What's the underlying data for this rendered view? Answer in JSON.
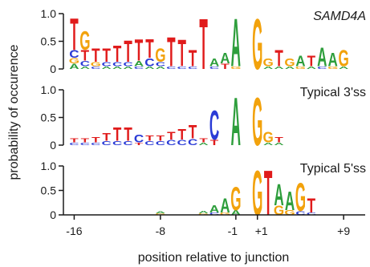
{
  "chart_data": {
    "type": "sequence-logo",
    "xlabel": "position relative to junction",
    "ylabel": "probability of occurence",
    "x_ticks": [
      "-16",
      "-8",
      "-1",
      "+1",
      "+9"
    ],
    "x_tick_positions": [
      -16,
      -8,
      -1,
      1,
      9
    ],
    "y_ticks": [
      "0",
      "0.5",
      "1.0"
    ],
    "ylim": [
      0,
      1.0
    ],
    "x_range": [
      -17,
      11
    ],
    "colors": {
      "A": "#2e9e3c",
      "C": "#2a3bd6",
      "G": "#f2a20c",
      "T": "#e01b1b"
    },
    "panels": [
      {
        "title": "SAMD4A",
        "title_style": "italic",
        "positions": [
          {
            "pos": -16,
            "letters": [
              {
                "b": "T",
                "p": 0.6
              },
              {
                "b": "C",
                "p": 0.15
              },
              {
                "b": "A",
                "p": 0.1
              },
              {
                "b": "G",
                "p": 0.1
              }
            ]
          },
          {
            "pos": -15,
            "letters": [
              {
                "b": "G",
                "p": 0.35
              },
              {
                "b": "T",
                "p": 0.2
              },
              {
                "b": "C",
                "p": 0.1
              },
              {
                "b": "A",
                "p": 0.05
              }
            ]
          },
          {
            "pos": -14,
            "letters": [
              {
                "b": "T",
                "p": 0.25
              },
              {
                "b": "G",
                "p": 0.08
              },
              {
                "b": "C",
                "p": 0.05
              }
            ]
          },
          {
            "pos": -13,
            "letters": [
              {
                "b": "T",
                "p": 0.25
              },
              {
                "b": "C",
                "p": 0.08
              },
              {
                "b": "A",
                "p": 0.05
              }
            ]
          },
          {
            "pos": -12,
            "letters": [
              {
                "b": "T",
                "p": 0.3
              },
              {
                "b": "C",
                "p": 0.08
              },
              {
                "b": "A",
                "p": 0.05
              }
            ]
          },
          {
            "pos": -11,
            "letters": [
              {
                "b": "T",
                "p": 0.4
              },
              {
                "b": "C",
                "p": 0.08
              },
              {
                "b": "A",
                "p": 0.05
              }
            ]
          },
          {
            "pos": -10,
            "letters": [
              {
                "b": "T",
                "p": 0.4
              },
              {
                "b": "A",
                "p": 0.1
              },
              {
                "b": "C",
                "p": 0.05
              }
            ]
          },
          {
            "pos": -9,
            "letters": [
              {
                "b": "T",
                "p": 0.35
              },
              {
                "b": "C",
                "p": 0.15
              },
              {
                "b": "A",
                "p": 0.05
              }
            ]
          },
          {
            "pos": -8,
            "letters": [
              {
                "b": "G",
                "p": 0.25
              },
              {
                "b": "C",
                "p": 0.08
              },
              {
                "b": "A",
                "p": 0.05
              }
            ]
          },
          {
            "pos": -7,
            "letters": [
              {
                "b": "T",
                "p": 0.55
              },
              {
                "b": "C",
                "p": 0.05
              }
            ]
          },
          {
            "pos": -6,
            "letters": [
              {
                "b": "T",
                "p": 0.5
              },
              {
                "b": "C",
                "p": 0.05
              }
            ]
          },
          {
            "pos": -5,
            "letters": [
              {
                "b": "T",
                "p": 0.3
              },
              {
                "b": "C",
                "p": 0.05
              }
            ]
          },
          {
            "pos": -4,
            "letters": [
              {
                "b": "T",
                "p": 0.95
              }
            ]
          },
          {
            "pos": -3,
            "letters": [
              {
                "b": "A",
                "p": 0.15
              },
              {
                "b": "C",
                "p": 0.05
              }
            ]
          },
          {
            "pos": -2,
            "letters": [
              {
                "b": "A",
                "p": 0.2
              },
              {
                "b": "T",
                "p": 0.1
              }
            ]
          },
          {
            "pos": -1,
            "letters": [
              {
                "b": "A",
                "p": 0.9
              },
              {
                "b": "G",
                "p": 0.05
              }
            ]
          },
          {
            "pos": 1,
            "letters": [
              {
                "b": "G",
                "p": 0.95
              }
            ]
          },
          {
            "pos": 2,
            "letters": [
              {
                "b": "G",
                "p": 0.15
              },
              {
                "b": "A",
                "p": 0.05
              }
            ]
          },
          {
            "pos": 3,
            "letters": [
              {
                "b": "T",
                "p": 0.3
              },
              {
                "b": "A",
                "p": 0.05
              }
            ]
          },
          {
            "pos": 4,
            "letters": [
              {
                "b": "G",
                "p": 0.15
              },
              {
                "b": "A",
                "p": 0.05
              }
            ]
          },
          {
            "pos": 5,
            "letters": [
              {
                "b": "A",
                "p": 0.2
              },
              {
                "b": "G",
                "p": 0.05
              }
            ]
          },
          {
            "pos": 6,
            "letters": [
              {
                "b": "T",
                "p": 0.2
              },
              {
                "b": "A",
                "p": 0.05
              }
            ]
          },
          {
            "pos": 7,
            "letters": [
              {
                "b": "A",
                "p": 0.35
              },
              {
                "b": "C",
                "p": 0.05
              }
            ]
          },
          {
            "pos": 8,
            "letters": [
              {
                "b": "A",
                "p": 0.25
              },
              {
                "b": "G",
                "p": 0.05
              }
            ]
          },
          {
            "pos": 9,
            "letters": [
              {
                "b": "G",
                "p": 0.3
              },
              {
                "b": "A",
                "p": 0.05
              }
            ]
          }
        ]
      },
      {
        "title": "Typical 3'ss",
        "title_style": "normal",
        "positions": [
          {
            "pos": -16,
            "letters": [
              {
                "b": "T",
                "p": 0.08
              },
              {
                "b": "C",
                "p": 0.05
              }
            ]
          },
          {
            "pos": -15,
            "letters": [
              {
                "b": "T",
                "p": 0.08
              },
              {
                "b": "C",
                "p": 0.05
              }
            ]
          },
          {
            "pos": -14,
            "letters": [
              {
                "b": "T",
                "p": 0.1
              },
              {
                "b": "C",
                "p": 0.05
              }
            ]
          },
          {
            "pos": -13,
            "letters": [
              {
                "b": "T",
                "p": 0.15
              },
              {
                "b": "C",
                "p": 0.08
              }
            ]
          },
          {
            "pos": -12,
            "letters": [
              {
                "b": "T",
                "p": 0.25
              },
              {
                "b": "C",
                "p": 0.08
              }
            ]
          },
          {
            "pos": -11,
            "letters": [
              {
                "b": "T",
                "p": 0.25
              },
              {
                "b": "C",
                "p": 0.08
              }
            ]
          },
          {
            "pos": -10,
            "letters": [
              {
                "b": "C",
                "p": 0.15
              },
              {
                "b": "T",
                "p": 0.05
              }
            ]
          },
          {
            "pos": -9,
            "letters": [
              {
                "b": "T",
                "p": 0.1
              },
              {
                "b": "C",
                "p": 0.08
              }
            ]
          },
          {
            "pos": -8,
            "letters": [
              {
                "b": "T",
                "p": 0.1
              },
              {
                "b": "C",
                "p": 0.08
              }
            ]
          },
          {
            "pos": -7,
            "letters": [
              {
                "b": "T",
                "p": 0.15
              },
              {
                "b": "C",
                "p": 0.1
              }
            ]
          },
          {
            "pos": -6,
            "letters": [
              {
                "b": "T",
                "p": 0.2
              },
              {
                "b": "C",
                "p": 0.1
              }
            ]
          },
          {
            "pos": -5,
            "letters": [
              {
                "b": "T",
                "p": 0.25
              },
              {
                "b": "C",
                "p": 0.12
              }
            ]
          },
          {
            "pos": -4,
            "letters": [
              {
                "b": "T",
                "p": 0.08
              },
              {
                "b": "A",
                "p": 0.05
              }
            ]
          },
          {
            "pos": -3,
            "letters": [
              {
                "b": "C",
                "p": 0.55
              },
              {
                "b": "T",
                "p": 0.1
              }
            ]
          },
          {
            "pos": -1,
            "letters": [
              {
                "b": "A",
                "p": 0.9
              }
            ]
          },
          {
            "pos": 1,
            "letters": [
              {
                "b": "G",
                "p": 0.9
              }
            ]
          },
          {
            "pos": 2,
            "letters": [
              {
                "b": "G",
                "p": 0.2
              },
              {
                "b": "A",
                "p": 0.05
              }
            ]
          },
          {
            "pos": 3,
            "letters": [
              {
                "b": "T",
                "p": 0.1
              },
              {
                "b": "A",
                "p": 0.05
              }
            ]
          }
        ]
      },
      {
        "title": "Typical 5'ss",
        "title_style": "normal",
        "positions": [
          {
            "pos": -8,
            "letters": [
              {
                "b": "A",
                "p": 0.04
              },
              {
                "b": "G",
                "p": 0.03
              }
            ]
          },
          {
            "pos": -4,
            "letters": [
              {
                "b": "A",
                "p": 0.05
              },
              {
                "b": "G",
                "p": 0.03
              }
            ]
          },
          {
            "pos": -3,
            "letters": [
              {
                "b": "A",
                "p": 0.15
              },
              {
                "b": "C",
                "p": 0.05
              }
            ]
          },
          {
            "pos": -2,
            "letters": [
              {
                "b": "A",
                "p": 0.3
              },
              {
                "b": "G",
                "p": 0.05
              }
            ]
          },
          {
            "pos": -1,
            "letters": [
              {
                "b": "G",
                "p": 0.5
              },
              {
                "b": "A",
                "p": 0.1
              }
            ]
          },
          {
            "pos": 1,
            "letters": [
              {
                "b": "G",
                "p": 0.95
              }
            ]
          },
          {
            "pos": 2,
            "letters": [
              {
                "b": "T",
                "p": 0.95
              }
            ]
          },
          {
            "pos": 3,
            "letters": [
              {
                "b": "A",
                "p": 0.45
              },
              {
                "b": "G",
                "p": 0.2
              }
            ]
          },
          {
            "pos": 4,
            "letters": [
              {
                "b": "A",
                "p": 0.4
              },
              {
                "b": "G",
                "p": 0.1
              }
            ]
          },
          {
            "pos": 5,
            "letters": [
              {
                "b": "G",
                "p": 0.6
              },
              {
                "b": "C",
                "p": 0.08
              }
            ]
          },
          {
            "pos": 6,
            "letters": [
              {
                "b": "T",
                "p": 0.3
              },
              {
                "b": "C",
                "p": 0.05
              }
            ]
          }
        ]
      }
    ]
  }
}
